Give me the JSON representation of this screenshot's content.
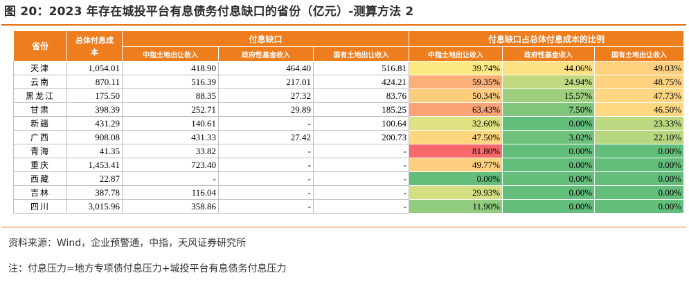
{
  "title": "图 20：2023 年存在城投平台有息债务付息缺口的省份（亿元）-测算方法 2",
  "table": {
    "headers": {
      "province": "省份",
      "total": "总体付息成本",
      "gap_group": "付息缺口",
      "ratio_group": "付息缺口占总体付息成本的比例",
      "sub": [
        "中指土地出让收入",
        "政府性基金收入",
        "国有土地出让收入",
        "中指土地出让收入",
        "政府性基金收入",
        "国有土地出让收入"
      ]
    },
    "rows": [
      {
        "province": "天津",
        "total": "1,054.01",
        "gap": [
          "418.90",
          "464.40",
          "516.81"
        ],
        "ratio": [
          "39.74%",
          "44.06%",
          "49.03%"
        ],
        "ratio_values": [
          39.74,
          44.06,
          49.03
        ]
      },
      {
        "province": "云南",
        "total": "870.11",
        "gap": [
          "516.39",
          "217.01",
          "424.21"
        ],
        "ratio": [
          "59.35%",
          "24.94%",
          "48.75%"
        ],
        "ratio_values": [
          59.35,
          24.94,
          48.75
        ]
      },
      {
        "province": "黑龙江",
        "total": "175.50",
        "gap": [
          "88.35",
          "27.32",
          "83.76"
        ],
        "ratio": [
          "50.34%",
          "15.57%",
          "47.73%"
        ],
        "ratio_values": [
          50.34,
          15.57,
          47.73
        ]
      },
      {
        "province": "甘肃",
        "total": "398.39",
        "gap": [
          "252.71",
          "29.89",
          "185.25"
        ],
        "ratio": [
          "63.43%",
          "7.50%",
          "46.50%"
        ],
        "ratio_values": [
          63.43,
          7.5,
          46.5
        ]
      },
      {
        "province": "新疆",
        "total": "431.29",
        "gap": [
          "140.61",
          "-",
          "100.64"
        ],
        "ratio": [
          "32.60%",
          "0.00%",
          "23.33%"
        ],
        "ratio_values": [
          32.6,
          0.0,
          23.33
        ]
      },
      {
        "province": "广西",
        "total": "908.08",
        "gap": [
          "431.33",
          "27.42",
          "200.73"
        ],
        "ratio": [
          "47.50%",
          "3.02%",
          "22.10%"
        ],
        "ratio_values": [
          47.5,
          3.02,
          22.1
        ]
      },
      {
        "province": "青海",
        "total": "41.35",
        "gap": [
          "33.82",
          "-",
          "-"
        ],
        "ratio": [
          "81.80%",
          "0.00%",
          "0.00%"
        ],
        "ratio_values": [
          81.8,
          0.0,
          0.0
        ]
      },
      {
        "province": "重庆",
        "total": "1,453.41",
        "gap": [
          "723.40",
          "-",
          "-"
        ],
        "ratio": [
          "49.77%",
          "0.00%",
          "0.00%"
        ],
        "ratio_values": [
          49.77,
          0.0,
          0.0
        ]
      },
      {
        "province": "西藏",
        "total": "22.87",
        "gap": [
          "-",
          "-",
          "-"
        ],
        "ratio": [
          "0.00%",
          "0.00%",
          "0.00%"
        ],
        "ratio_values": [
          0.0,
          0.0,
          0.0
        ]
      },
      {
        "province": "吉林",
        "total": "387.78",
        "gap": [
          "116.04",
          "-",
          "-"
        ],
        "ratio": [
          "29.93%",
          "0.00%",
          "0.00%"
        ],
        "ratio_values": [
          29.93,
          0.0,
          0.0
        ]
      },
      {
        "province": "四川",
        "total": "3,015.96",
        "gap": [
          "358.86",
          "-",
          "-"
        ],
        "ratio": [
          "11.90%",
          "0.00%",
          "0.00%"
        ],
        "ratio_values": [
          11.9,
          0.0,
          0.0
        ]
      }
    ]
  },
  "colors": {
    "header_bg": "#ee7d1e",
    "rule": "#e46c0a",
    "scale_low": "#63be7b",
    "scale_mid": "#ffeb84",
    "scale_high": "#f8696b"
  },
  "source": "资料来源：Wind，企业预警通，中指，天风证券研究所",
  "note": "注：付息压力=地方专项债付息压力+城投平台有息债务付息压力"
}
